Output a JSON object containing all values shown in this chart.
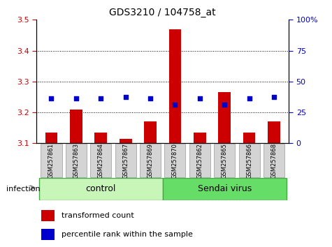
{
  "title": "GDS3210 / 104758_at",
  "samples": [
    "GSM257861",
    "GSM257863",
    "GSM257864",
    "GSM257867",
    "GSM257869",
    "GSM257870",
    "GSM257862",
    "GSM257865",
    "GSM257866",
    "GSM257868"
  ],
  "transformed_counts": [
    3.135,
    3.21,
    3.135,
    3.115,
    3.17,
    3.47,
    3.135,
    3.265,
    3.135,
    3.17
  ],
  "percentile_values": [
    3.245,
    3.245,
    3.245,
    3.25,
    3.245,
    3.225,
    3.245,
    3.225,
    3.245,
    3.25
  ],
  "groups": [
    "control",
    "control",
    "control",
    "control",
    "control",
    "Sendai virus",
    "Sendai virus",
    "Sendai virus",
    "Sendai virus",
    "Sendai virus"
  ],
  "group_colors": [
    "#c8f5b8",
    "#66dd66"
  ],
  "bar_color": "#cc0000",
  "dot_color": "#0000cc",
  "ylim_left": [
    3.1,
    3.5
  ],
  "ylim_right": [
    0,
    100
  ],
  "yticks_left": [
    3.1,
    3.2,
    3.3,
    3.4,
    3.5
  ],
  "yticks_right": [
    0,
    25,
    50,
    75,
    100
  ],
  "factor_label": "infection",
  "legend_items": [
    "transformed count",
    "percentile rank within the sample"
  ],
  "background_color": "#ffffff",
  "plot_bg_color": "#ffffff",
  "bar_width": 0.5,
  "grid_lines": [
    3.2,
    3.3,
    3.4
  ]
}
